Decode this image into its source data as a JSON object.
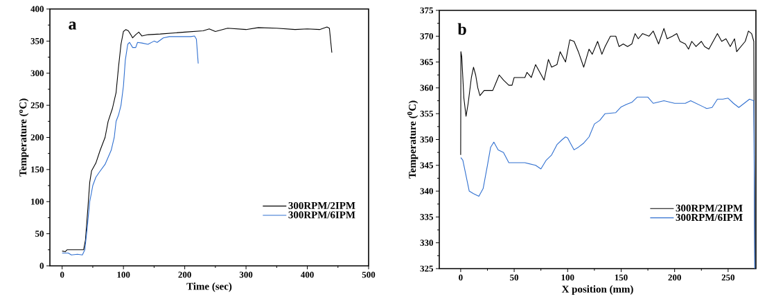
{
  "chart_data": [
    {
      "type": "line",
      "xlabel": "Time (sec)",
      "ylabel": "Temperature ($^{o}$C)",
      "annotations": [
        "a"
      ],
      "xlim": [
        -20,
        500
      ],
      "ylim": [
        0,
        400
      ],
      "xticks": [
        0,
        100,
        200,
        300,
        400,
        500
      ],
      "yticks": [
        0,
        50,
        100,
        150,
        200,
        250,
        300,
        350,
        400
      ],
      "legend": "bottom right",
      "grid": false,
      "series": [
        {
          "name": "300RPM/2IPM",
          "color": "#000000",
          "x": [
            0,
            5,
            8,
            35,
            38,
            42,
            45,
            48,
            55,
            62,
            70,
            75,
            82,
            88,
            92,
            96,
            100,
            104,
            108,
            112,
            115,
            120,
            125,
            130,
            140,
            160,
            200,
            230,
            240,
            250,
            270,
            300,
            320,
            350,
            380,
            400,
            420,
            432,
            436,
            440
          ],
          "values": [
            23,
            22,
            25,
            25,
            40,
            90,
            130,
            148,
            160,
            180,
            200,
            225,
            245,
            270,
            310,
            345,
            365,
            368,
            366,
            360,
            355,
            360,
            364,
            358,
            360,
            361,
            364,
            366,
            369,
            365,
            370,
            368,
            371,
            370,
            368,
            369,
            368,
            372,
            370,
            332
          ]
        },
        {
          "name": "300RPM/6IPM",
          "color": "#2f6fd0",
          "x": [
            0,
            10,
            15,
            25,
            33,
            37,
            41,
            45,
            50,
            55,
            60,
            70,
            80,
            85,
            88,
            92,
            96,
            100,
            103,
            107,
            110,
            115,
            120,
            123,
            130,
            140,
            150,
            155,
            165,
            175,
            190,
            210,
            216,
            219,
            222
          ],
          "values": [
            20,
            20,
            17,
            18,
            17,
            25,
            60,
            100,
            125,
            138,
            145,
            158,
            180,
            200,
            225,
            235,
            250,
            280,
            320,
            345,
            348,
            340,
            340,
            348,
            347,
            345,
            350,
            348,
            355,
            357,
            357,
            357,
            358,
            353,
            315
          ]
        }
      ]
    },
    {
      "type": "line",
      "xlabel": "X position (mm)",
      "ylabel": "Temperature ($^{0}$C)",
      "annotations": [
        "b"
      ],
      "xlim": [
        -20,
        276
      ],
      "ylim": [
        325,
        375
      ],
      "xticks": [
        0,
        50,
        100,
        150,
        200,
        250
      ],
      "yticks": [
        325,
        330,
        335,
        340,
        345,
        350,
        355,
        360,
        365,
        370,
        375
      ],
      "legend": "bottom right",
      "grid": false,
      "series": [
        {
          "name": "300RPM/2IPM",
          "color": "#000000",
          "x": [
            0,
            0.2,
            1,
            2,
            3,
            5,
            7,
            10,
            12,
            14,
            16,
            18,
            22,
            25,
            30,
            33,
            36,
            40,
            45,
            48,
            50,
            55,
            60,
            62,
            66,
            70,
            74,
            78,
            82,
            85,
            90,
            93,
            98,
            102,
            106,
            110,
            115,
            120,
            123,
            128,
            132,
            135,
            140,
            145,
            148,
            152,
            156,
            160,
            163,
            166,
            170,
            176,
            180,
            185,
            190,
            193,
            198,
            202,
            205,
            210,
            213,
            216,
            220,
            225,
            228,
            232,
            240,
            244,
            248,
            252,
            256,
            258,
            262,
            266,
            269,
            272,
            274,
            275
          ],
          "values": [
            347,
            367,
            366,
            362,
            358,
            354.5,
            357,
            362,
            364,
            362.5,
            360,
            358.5,
            359.5,
            359.5,
            359.5,
            361,
            362.5,
            361.5,
            360.5,
            360.5,
            362,
            362,
            362,
            363,
            362,
            364.5,
            363,
            361.5,
            365.5,
            364,
            364.5,
            367,
            365,
            369.3,
            369,
            367,
            364,
            367.5,
            366.5,
            369,
            366.5,
            368,
            370,
            370,
            368,
            368.5,
            368,
            368.5,
            370.5,
            369.5,
            370.5,
            370,
            371,
            368.5,
            371.5,
            369.5,
            370,
            370.5,
            369,
            368.5,
            367.5,
            369,
            368,
            369,
            368,
            367.5,
            370.5,
            369,
            369.5,
            368,
            369.5,
            367,
            368,
            369,
            371,
            370.5,
            369,
            325
          ]
        },
        {
          "name": "300RPM/6IPM",
          "color": "#2f6fd0",
          "x": [
            0.1,
            2,
            5,
            8,
            12,
            17,
            21,
            25,
            28,
            31,
            35,
            40,
            45,
            50,
            55,
            60,
            70,
            75,
            80,
            85,
            90,
            95,
            98,
            100,
            102,
            106,
            110,
            115,
            120,
            125,
            130,
            135,
            145,
            150,
            155,
            160,
            165,
            170,
            175,
            180,
            190,
            200,
            210,
            215,
            225,
            230,
            235,
            240,
            245,
            250,
            255,
            260,
            265,
            270,
            274,
            275
          ],
          "values": [
            346.5,
            346,
            343,
            340,
            339.5,
            339,
            340.5,
            345,
            348.5,
            349.5,
            348,
            347.5,
            345.5,
            345.5,
            345.5,
            345.5,
            345,
            344.3,
            346,
            347,
            349,
            350,
            350.5,
            350.3,
            349.5,
            348,
            348.5,
            349.3,
            350.5,
            353,
            353.7,
            355,
            355.2,
            356.3,
            356.8,
            357.2,
            358.2,
            358.2,
            358.2,
            357,
            357.5,
            357,
            357,
            357.5,
            356.5,
            356,
            356.2,
            357.8,
            357.8,
            358,
            357,
            356.2,
            357,
            357.8,
            357.5,
            325
          ]
        }
      ]
    }
  ]
}
